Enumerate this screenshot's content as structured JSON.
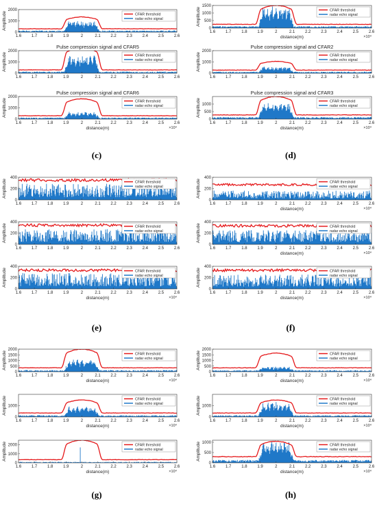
{
  "figure": {
    "captions": [
      "(c)",
      "(d)",
      "(e)",
      "(f)",
      "(g)",
      "(h)"
    ]
  },
  "style": {
    "threshold_color": "#e5181a",
    "echo_color": "#1f78c8",
    "axis_color": "#333333",
    "legend_threshold_label": "CFAR threshold",
    "legend_echo_label": "radar echo signal",
    "xlabel": "distance(m)",
    "ylabel": "Amplitude",
    "x_exponent": "×10⁴",
    "x_ticks": [
      "1.6",
      "1.7",
      "1.8",
      "1.9",
      "2",
      "2.1",
      "2.2",
      "2.3",
      "2.4",
      "2.5",
      "2.6"
    ]
  },
  "chart_data": [
    {
      "panel": "c",
      "row": 0,
      "type": "line",
      "title": "",
      "ylim": [
        0,
        2000
      ],
      "yticks": [
        0,
        1000,
        2000
      ],
      "xlabel_shown": false,
      "exp_shown": false,
      "threshold": {
        "shape": "plateau",
        "base": 300,
        "peak": 1350
      },
      "echo": {
        "shape": "burst",
        "base": 130,
        "peak": 900
      },
      "xlim": [
        1.6,
        2.6
      ],
      "x_scale": "×10⁴"
    },
    {
      "panel": "c",
      "row": 1,
      "type": "line",
      "title": "Pulse compression signal and CFAR5",
      "ylim": [
        0,
        2000
      ],
      "yticks": [
        0,
        1000,
        2000
      ],
      "xlabel_shown": false,
      "exp_shown": false,
      "threshold": {
        "shape": "plateau",
        "base": 300,
        "peak": 2250
      },
      "echo": {
        "shape": "burst",
        "base": 130,
        "peak": 1550
      },
      "xlim": [
        1.6,
        2.6
      ],
      "x_scale": "×10⁴"
    },
    {
      "panel": "c",
      "row": 2,
      "type": "line",
      "title": "Pulse compression signal and CFAR6",
      "ylim": [
        0,
        2000
      ],
      "yticks": [
        0,
        1000,
        2000
      ],
      "xlabel_shown": true,
      "exp_shown": true,
      "threshold": {
        "shape": "plateau",
        "base": 300,
        "peak": 1800
      },
      "echo": {
        "shape": "burst",
        "base": 120,
        "peak": 550
      },
      "xlim": [
        1.6,
        2.6
      ],
      "x_scale": "×10⁴"
    },
    {
      "panel": "d",
      "row": 0,
      "type": "line",
      "title": "",
      "ylim": [
        0,
        1500
      ],
      "yticks": [
        0,
        500,
        1000,
        1500
      ],
      "xlabel_shown": true,
      "exp_shown": true,
      "threshold": {
        "shape": "plateau",
        "base": 250,
        "peak": 1500
      },
      "echo": {
        "shape": "burst",
        "base": 110,
        "peak": 1350
      },
      "xlim": [
        1.6,
        2.6
      ],
      "x_scale": "×10⁴"
    },
    {
      "panel": "d",
      "row": 1,
      "type": "line",
      "title": "Pulse compression signal and CFAR2",
      "ylim": [
        0,
        2000
      ],
      "yticks": [
        0,
        1000,
        2000
      ],
      "xlabel_shown": false,
      "exp_shown": false,
      "threshold": {
        "shape": "plateau",
        "base": 280,
        "peak": 1050
      },
      "echo": {
        "shape": "burst",
        "base": 120,
        "peak": 500
      },
      "xlim": [
        1.6,
        2.6
      ],
      "x_scale": "×10⁴"
    },
    {
      "panel": "d",
      "row": 2,
      "type": "line",
      "title": "Pulse compression signal and CFAR3",
      "ylim": [
        0,
        1500
      ],
      "yticks": [
        0,
        500,
        1000
      ],
      "xlabel_shown": true,
      "exp_shown": true,
      "threshold": {
        "shape": "plateau",
        "base": 280,
        "peak": 1500
      },
      "echo": {
        "shape": "burst",
        "base": 120,
        "peak": 1050
      },
      "xlim": [
        1.6,
        2.6
      ],
      "x_scale": "×10⁴"
    },
    {
      "panel": "e",
      "row": 0,
      "type": "line",
      "title": "",
      "ylim": [
        0,
        400
      ],
      "yticks": [
        0,
        200,
        400
      ],
      "xlabel_shown": false,
      "exp_shown": false,
      "threshold": {
        "shape": "flat",
        "base": 350,
        "peak": 350
      },
      "echo": {
        "shape": "noise",
        "base": 190,
        "peak": 190
      },
      "xlim": [
        1.6,
        2.6
      ],
      "x_scale": "×10⁴"
    },
    {
      "panel": "e",
      "row": 1,
      "type": "line",
      "title": "",
      "ylim": [
        0,
        400
      ],
      "yticks": [
        0,
        200,
        400
      ],
      "xlabel_shown": false,
      "exp_shown": false,
      "threshold": {
        "shape": "flat",
        "base": 340,
        "peak": 340
      },
      "echo": {
        "shape": "noise",
        "base": 180,
        "peak": 180
      },
      "xlim": [
        1.6,
        2.6
      ],
      "x_scale": "×10⁴"
    },
    {
      "panel": "e",
      "row": 2,
      "type": "line",
      "title": "",
      "ylim": [
        0,
        400
      ],
      "yticks": [
        0,
        200,
        400
      ],
      "xlabel_shown": true,
      "exp_shown": true,
      "threshold": {
        "shape": "flat",
        "base": 330,
        "peak": 330
      },
      "echo": {
        "shape": "noise",
        "base": 190,
        "peak": 190
      },
      "xlim": [
        1.6,
        2.6
      ],
      "x_scale": "×10⁴"
    },
    {
      "panel": "f",
      "row": 0,
      "type": "line",
      "title": "",
      "ylim": [
        0,
        400
      ],
      "yticks": [
        0,
        200,
        400
      ],
      "xlabel_shown": true,
      "exp_shown": true,
      "threshold": {
        "shape": "flat",
        "base": 270,
        "peak": 270
      },
      "echo": {
        "shape": "noise",
        "base": 110,
        "peak": 110
      },
      "xlim": [
        1.6,
        2.6
      ],
      "x_scale": "×10⁴"
    },
    {
      "panel": "f",
      "row": 1,
      "type": "line",
      "title": "",
      "ylim": [
        0,
        400
      ],
      "yticks": [
        0,
        200,
        400
      ],
      "xlabel_shown": true,
      "exp_shown": true,
      "threshold": {
        "shape": "flat",
        "base": 330,
        "peak": 330
      },
      "echo": {
        "shape": "noise",
        "base": 170,
        "peak": 170
      },
      "xlim": [
        1.6,
        2.6
      ],
      "x_scale": "×10⁴"
    },
    {
      "panel": "f",
      "row": 2,
      "type": "line",
      "title": "",
      "ylim": [
        0,
        400
      ],
      "yticks": [
        0,
        200,
        400
      ],
      "xlabel_shown": true,
      "exp_shown": true,
      "threshold": {
        "shape": "flat",
        "base": 330,
        "peak": 330
      },
      "echo": {
        "shape": "noise",
        "base": 170,
        "peak": 170
      },
      "xlim": [
        1.6,
        2.6
      ],
      "x_scale": "×10⁴"
    },
    {
      "panel": "g",
      "row": 0,
      "type": "line",
      "title": "",
      "ylim": [
        0,
        2000
      ],
      "yticks": [
        0,
        500,
        1000,
        1500,
        2000
      ],
      "xlabel_shown": true,
      "exp_shown": true,
      "threshold": {
        "shape": "plateau",
        "base": 350,
        "peak": 2000
      },
      "echo": {
        "shape": "burst",
        "base": 130,
        "peak": 1050
      },
      "xlim": [
        1.6,
        2.6
      ],
      "x_scale": "×10⁴"
    },
    {
      "panel": "g",
      "row": 1,
      "type": "line",
      "title": "",
      "ylim": [
        0,
        2000
      ],
      "yticks": [
        0,
        1000
      ],
      "xlabel_shown": true,
      "exp_shown": true,
      "threshold": {
        "shape": "plateau",
        "base": 350,
        "peak": 1500
      },
      "echo": {
        "shape": "burst",
        "base": 130,
        "peak": 800
      },
      "xlim": [
        1.6,
        2.6
      ],
      "x_scale": "×10⁴"
    },
    {
      "panel": "g",
      "row": 2,
      "type": "line",
      "title": "",
      "ylim": [
        0,
        2500
      ],
      "yticks": [
        0,
        1000,
        2000
      ],
      "xlabel_shown": true,
      "exp_shown": true,
      "threshold": {
        "shape": "plateau",
        "base": 350,
        "peak": 2500
      },
      "echo": {
        "shape": "spike",
        "base": 80,
        "peak": 1700
      },
      "xlim": [
        1.6,
        2.6
      ],
      "x_scale": "×10⁴"
    },
    {
      "panel": "h",
      "row": 0,
      "type": "line",
      "title": "",
      "ylim": [
        0,
        2000
      ],
      "yticks": [
        0,
        500,
        1000,
        1500,
        2000
      ],
      "xlabel_shown": true,
      "exp_shown": true,
      "threshold": {
        "shape": "plateau",
        "base": 350,
        "peak": 1650
      },
      "echo": {
        "shape": "burst",
        "base": 120,
        "peak": 350
      },
      "xlim": [
        1.6,
        2.6
      ],
      "x_scale": "×10⁴"
    },
    {
      "panel": "h",
      "row": 1,
      "type": "line",
      "title": "",
      "ylim": [
        0,
        2000
      ],
      "yticks": [
        0,
        1000
      ],
      "xlabel_shown": true,
      "exp_shown": true,
      "threshold": {
        "shape": "plateau",
        "base": 350,
        "peak": 1500
      },
      "echo": {
        "shape": "burst",
        "base": 130,
        "peak": 1200
      },
      "xlim": [
        1.6,
        2.6
      ],
      "x_scale": "×10⁴"
    },
    {
      "panel": "h",
      "row": 2,
      "type": "line",
      "title": "",
      "ylim": [
        0,
        1100
      ],
      "yticks": [
        0,
        500,
        1000
      ],
      "xlabel_shown": true,
      "exp_shown": true,
      "threshold": {
        "shape": "plateau",
        "base": 300,
        "peak": 1050
      },
      "echo": {
        "shape": "burst",
        "base": 120,
        "peak": 950
      },
      "xlim": [
        1.6,
        2.6
      ],
      "x_scale": "×10⁴"
    }
  ]
}
